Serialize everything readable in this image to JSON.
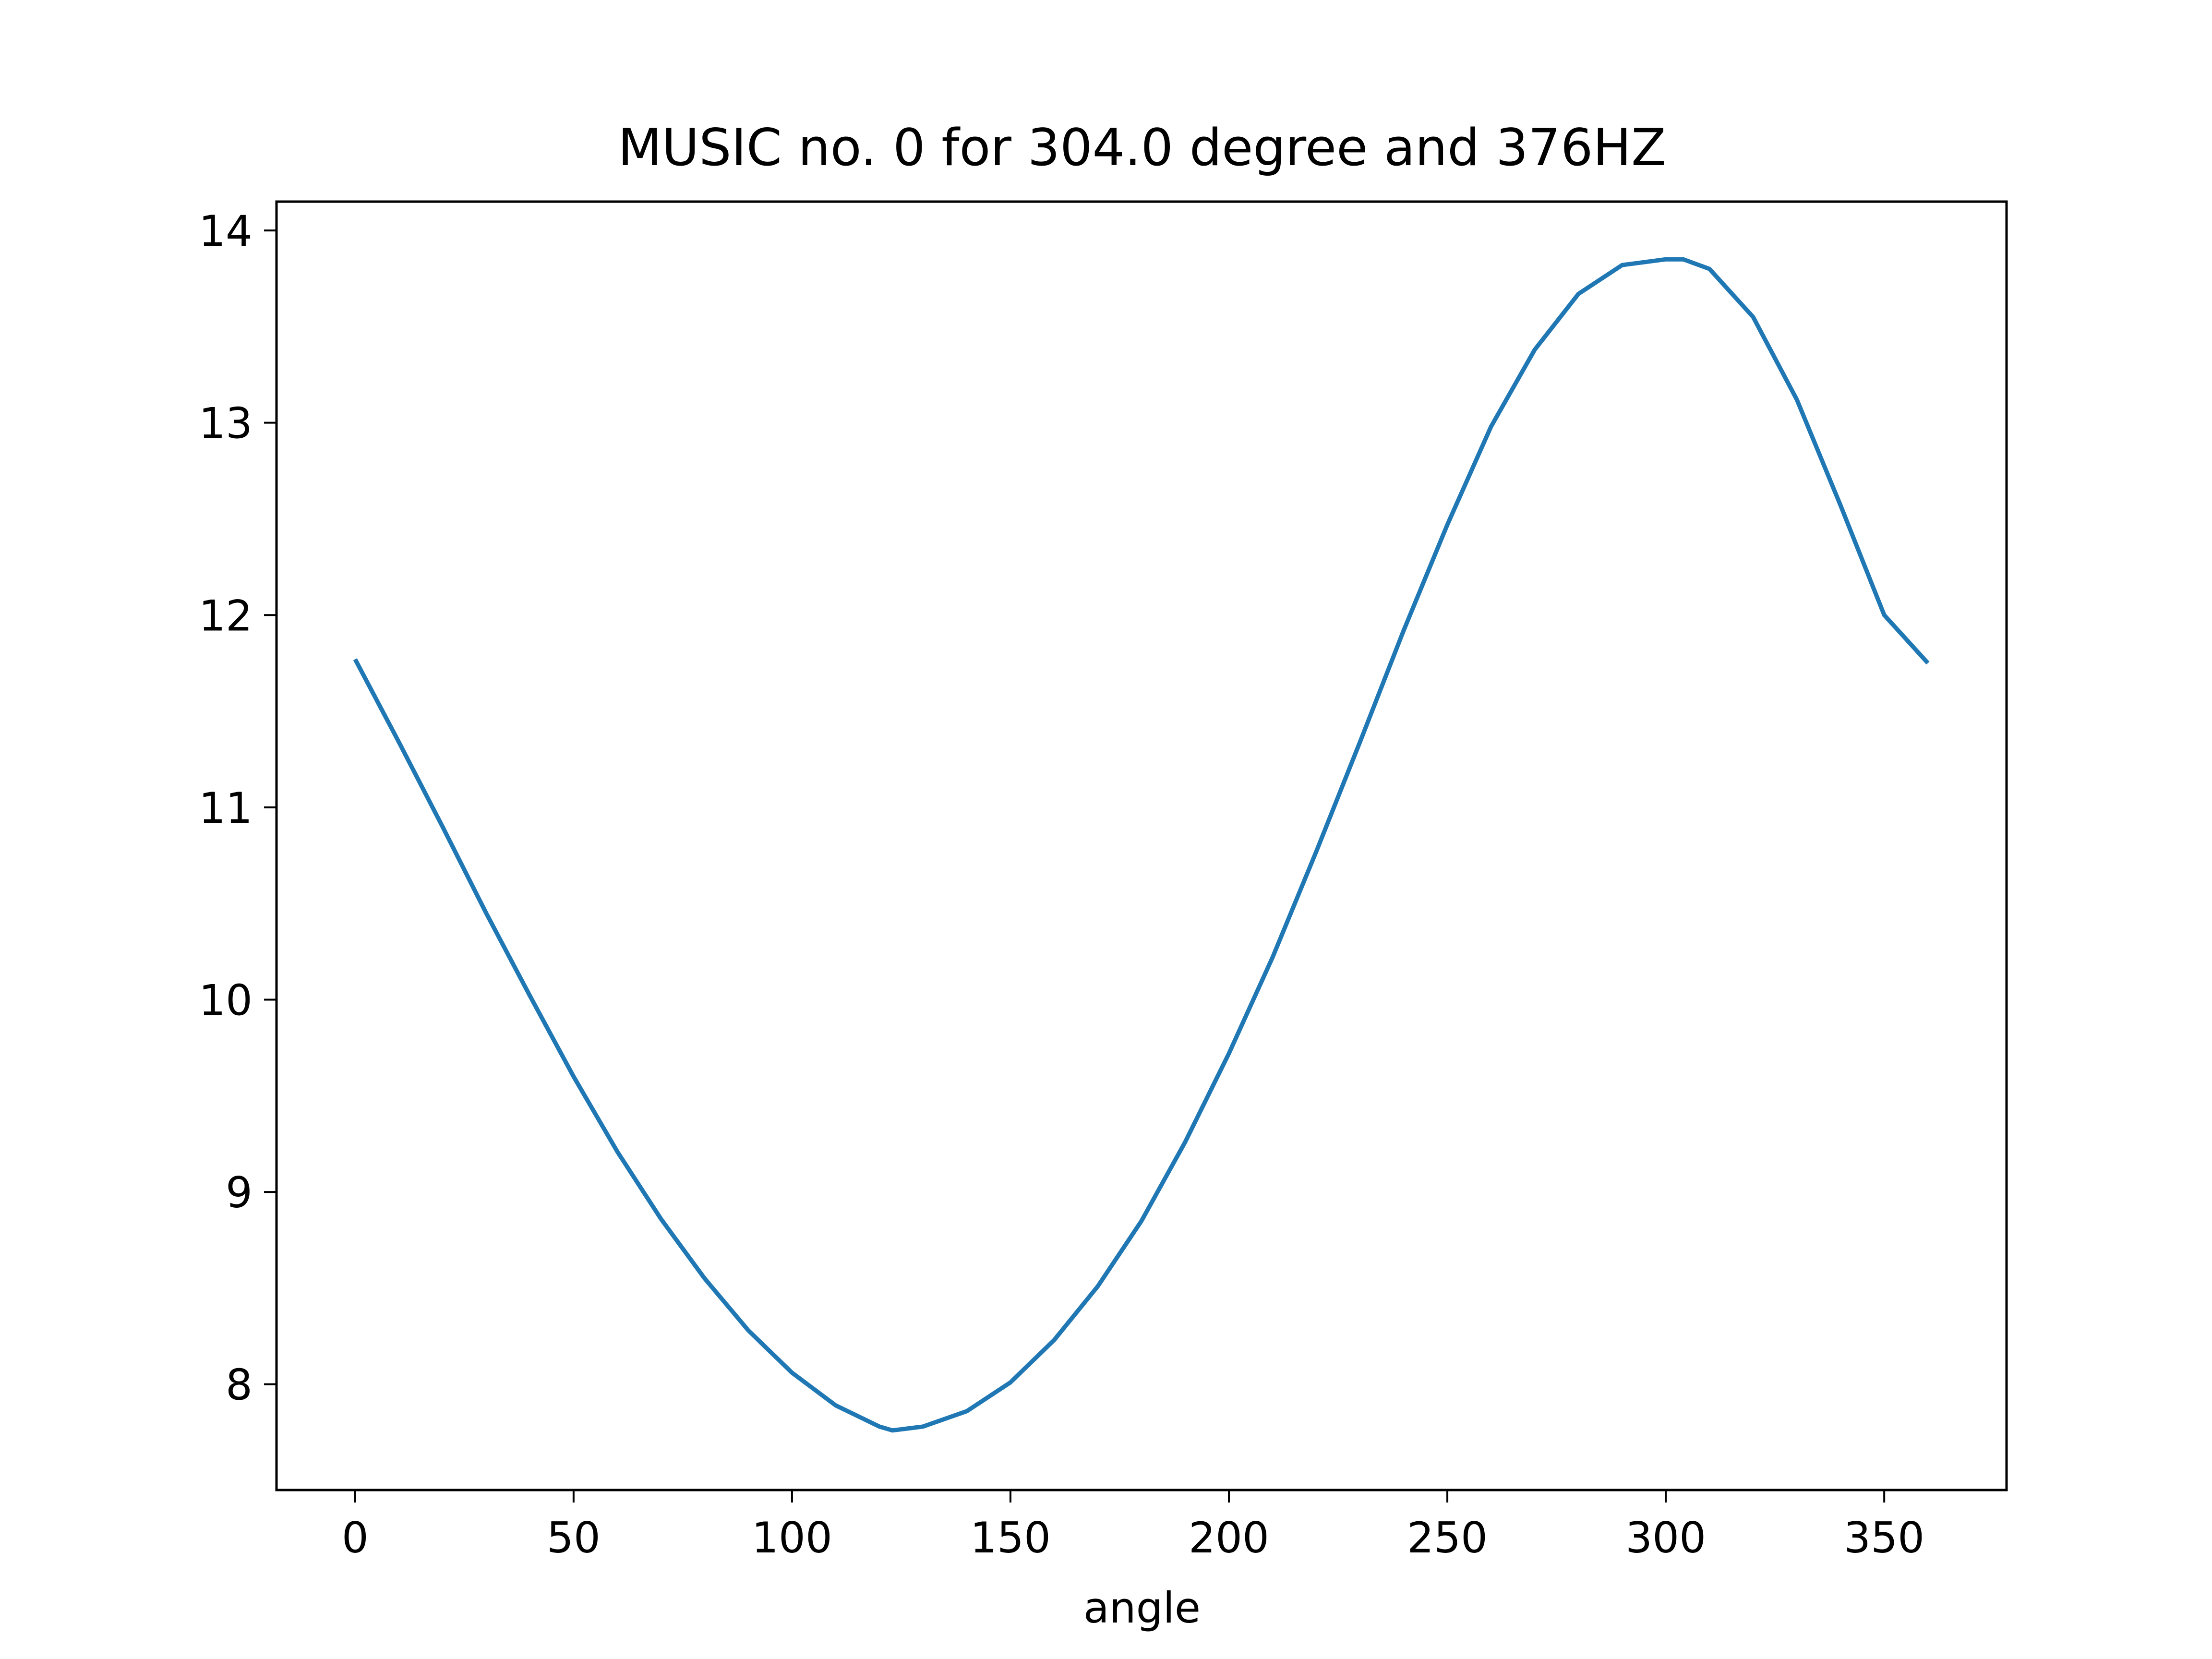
{
  "chart_data": {
    "type": "line",
    "title": "MUSIC no. 0 for 304.0 degree and 376HZ",
    "xlabel": "angle",
    "ylabel": "",
    "xlim": [
      -18,
      378
    ],
    "ylim": [
      7.45,
      14.15
    ],
    "xticks": [
      0,
      50,
      100,
      150,
      200,
      250,
      300,
      350
    ],
    "xtick_labels": [
      "0",
      "50",
      "100",
      "150",
      "200",
      "250",
      "300",
      "350"
    ],
    "yticks": [
      8,
      9,
      10,
      11,
      12,
      13,
      14
    ],
    "ytick_labels": [
      "8",
      "9",
      "10",
      "11",
      "12",
      "13",
      "14"
    ],
    "grid": false,
    "legend": "none",
    "series": [
      {
        "color": "#1f77b4",
        "x": [
          0,
          10,
          20,
          30,
          40,
          50,
          60,
          70,
          80,
          90,
          100,
          110,
          120,
          123,
          130,
          140,
          150,
          160,
          170,
          180,
          190,
          200,
          210,
          220,
          230,
          240,
          250,
          260,
          270,
          280,
          290,
          300,
          304,
          310,
          320,
          330,
          340,
          350,
          360
        ],
        "y": [
          11.77,
          11.34,
          10.9,
          10.45,
          10.02,
          9.6,
          9.21,
          8.86,
          8.55,
          8.28,
          8.06,
          7.89,
          7.78,
          7.76,
          7.78,
          7.86,
          8.01,
          8.23,
          8.51,
          8.85,
          9.26,
          9.72,
          10.22,
          10.77,
          11.34,
          11.92,
          12.47,
          12.98,
          13.38,
          13.67,
          13.82,
          13.85,
          13.85,
          13.8,
          13.55,
          13.12,
          12.57,
          12.0,
          11.75
        ]
      }
    ]
  }
}
